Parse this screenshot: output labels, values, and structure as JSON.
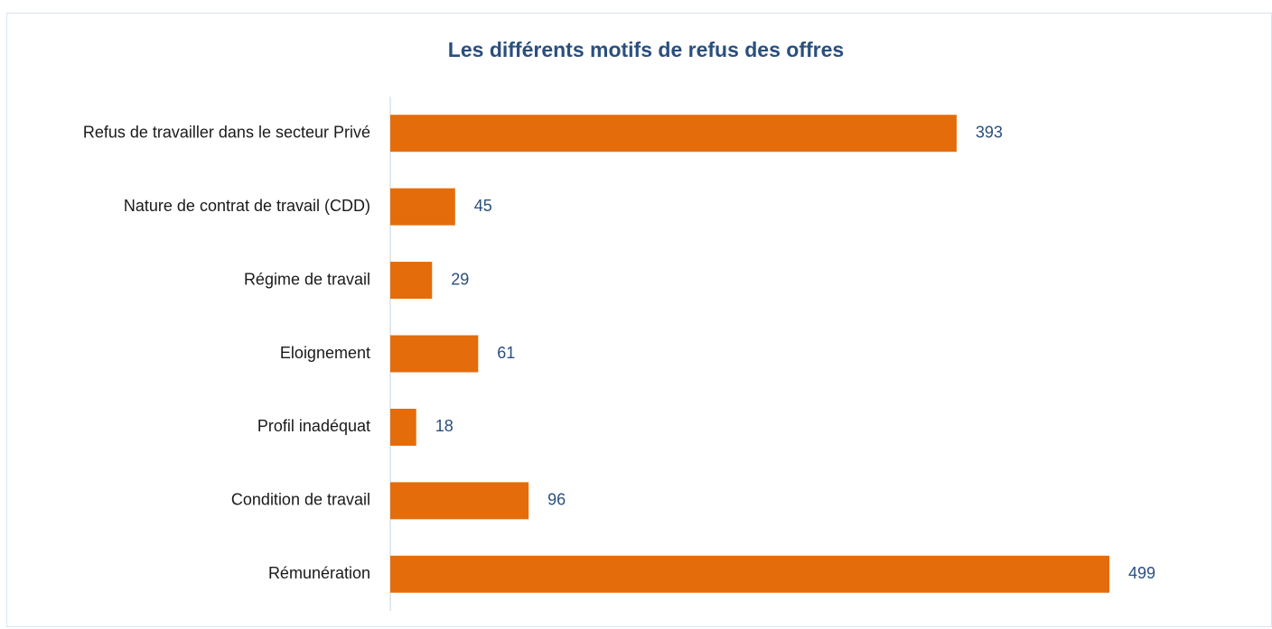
{
  "chart_data": {
    "type": "bar",
    "orientation": "horizontal",
    "title": "Les différents motifs de refus des offres",
    "categories": [
      "Refus de travailler dans le secteur Privé",
      "Nature de contrat de travail (CDD)",
      "Régime de travail",
      "Eloignement",
      "Profil inadéquat",
      "Condition de travail",
      "Rémunération"
    ],
    "values": [
      393,
      45,
      29,
      61,
      18,
      96,
      499
    ],
    "color": "#e46c0a"
  }
}
